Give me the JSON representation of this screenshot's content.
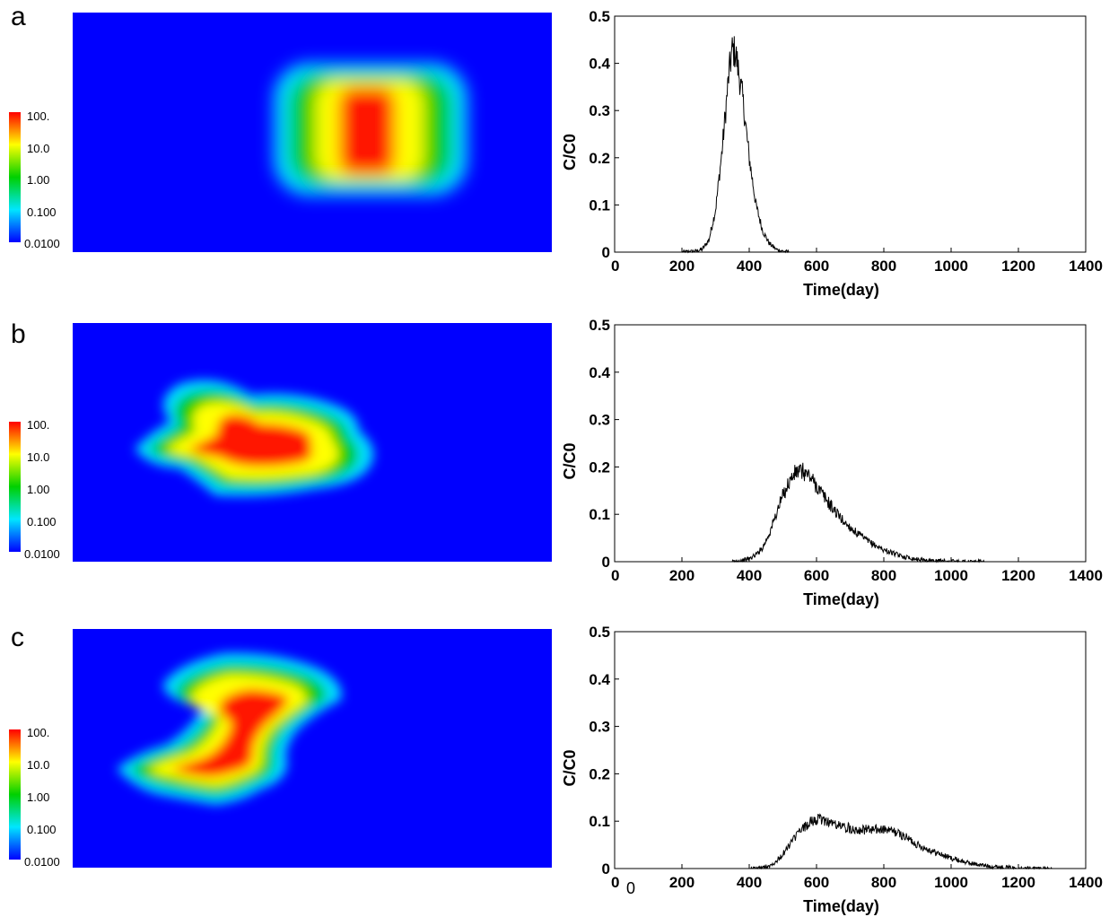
{
  "figure": {
    "panels": [
      {
        "letter": "a",
        "colorbar_labels": [
          "100.",
          "10.0",
          "1.00",
          "0.100",
          "0.0100"
        ]
      },
      {
        "letter": "b",
        "colorbar_labels": [
          "100.",
          "10.0",
          "1.00",
          "0.100",
          "0.0100"
        ]
      },
      {
        "letter": "c",
        "colorbar_labels": [
          "100.",
          "10.0",
          "1.00",
          "0.100",
          "0.0100"
        ]
      }
    ],
    "colors": {
      "background_blue": "#0000ff",
      "line": "#000000"
    }
  },
  "chart_data": [
    {
      "type": "line",
      "xlabel": "Time(day)",
      "ylabel": "C/C0",
      "xlim": [
        0,
        1400
      ],
      "ylim": [
        0,
        0.5
      ],
      "xticks": [
        "0",
        "200",
        "400",
        "600",
        "800",
        "1000",
        "1200",
        "1400"
      ],
      "yticks": [
        "0",
        "0.1",
        "0.2",
        "0.3",
        "0.4",
        "0.5"
      ],
      "grid": false,
      "series": [
        {
          "x": [
            0,
            200,
            240,
            260,
            280,
            300,
            320,
            340,
            350,
            360,
            380,
            400,
            420,
            440,
            460,
            480,
            500,
            520,
            600,
            800,
            1000,
            1200,
            1400
          ],
          "y": [
            0,
            0,
            0.002,
            0.006,
            0.025,
            0.09,
            0.22,
            0.38,
            0.43,
            0.42,
            0.33,
            0.2,
            0.1,
            0.045,
            0.018,
            0.006,
            0.002,
            0,
            0,
            0,
            0,
            0,
            0
          ]
        }
      ]
    },
    {
      "type": "line",
      "xlabel": "Time(day)",
      "ylabel": "C/C0",
      "xlim": [
        0,
        1400
      ],
      "ylim": [
        0,
        0.5
      ],
      "xticks": [
        "0",
        "200",
        "400",
        "600",
        "800",
        "1000",
        "1200",
        "1400"
      ],
      "yticks": [
        "0",
        "0.1",
        "0.2",
        "0.3",
        "0.4",
        "0.5"
      ],
      "grid": false,
      "series": [
        {
          "x": [
            0,
            350,
            380,
            400,
            420,
            440,
            460,
            480,
            500,
            520,
            540,
            560,
            580,
            600,
            640,
            680,
            720,
            760,
            800,
            850,
            900,
            950,
            1000,
            1100,
            1200,
            1400
          ],
          "y": [
            0,
            0,
            0.003,
            0.006,
            0.015,
            0.03,
            0.06,
            0.1,
            0.14,
            0.17,
            0.19,
            0.19,
            0.18,
            0.16,
            0.12,
            0.085,
            0.06,
            0.04,
            0.025,
            0.012,
            0.005,
            0.002,
            0.001,
            0,
            0,
            0
          ]
        }
      ]
    },
    {
      "type": "line",
      "xlabel": "Time(day)",
      "ylabel": "C/C0",
      "xlim": [
        0,
        1400
      ],
      "ylim": [
        0,
        0.5
      ],
      "xticks": [
        "0",
        "200",
        "400",
        "600",
        "800",
        "1000",
        "1200",
        "1400"
      ],
      "yticks": [
        "0",
        "0.1",
        "0.2",
        "0.3",
        "0.4",
        "0.5"
      ],
      "grid": false,
      "extra_label": "0",
      "series": [
        {
          "x": [
            0,
            400,
            440,
            460,
            480,
            500,
            520,
            540,
            560,
            580,
            600,
            620,
            640,
            660,
            680,
            700,
            720,
            740,
            760,
            780,
            800,
            820,
            840,
            860,
            880,
            900,
            950,
            1000,
            1050,
            1100,
            1150,
            1200,
            1300,
            1400
          ],
          "y": [
            0,
            0,
            0.002,
            0.006,
            0.015,
            0.03,
            0.05,
            0.07,
            0.085,
            0.097,
            0.103,
            0.103,
            0.098,
            0.092,
            0.088,
            0.085,
            0.083,
            0.082,
            0.082,
            0.082,
            0.082,
            0.08,
            0.075,
            0.068,
            0.06,
            0.05,
            0.035,
            0.022,
            0.012,
            0.006,
            0.003,
            0.001,
            0,
            0
          ]
        }
      ]
    }
  ]
}
